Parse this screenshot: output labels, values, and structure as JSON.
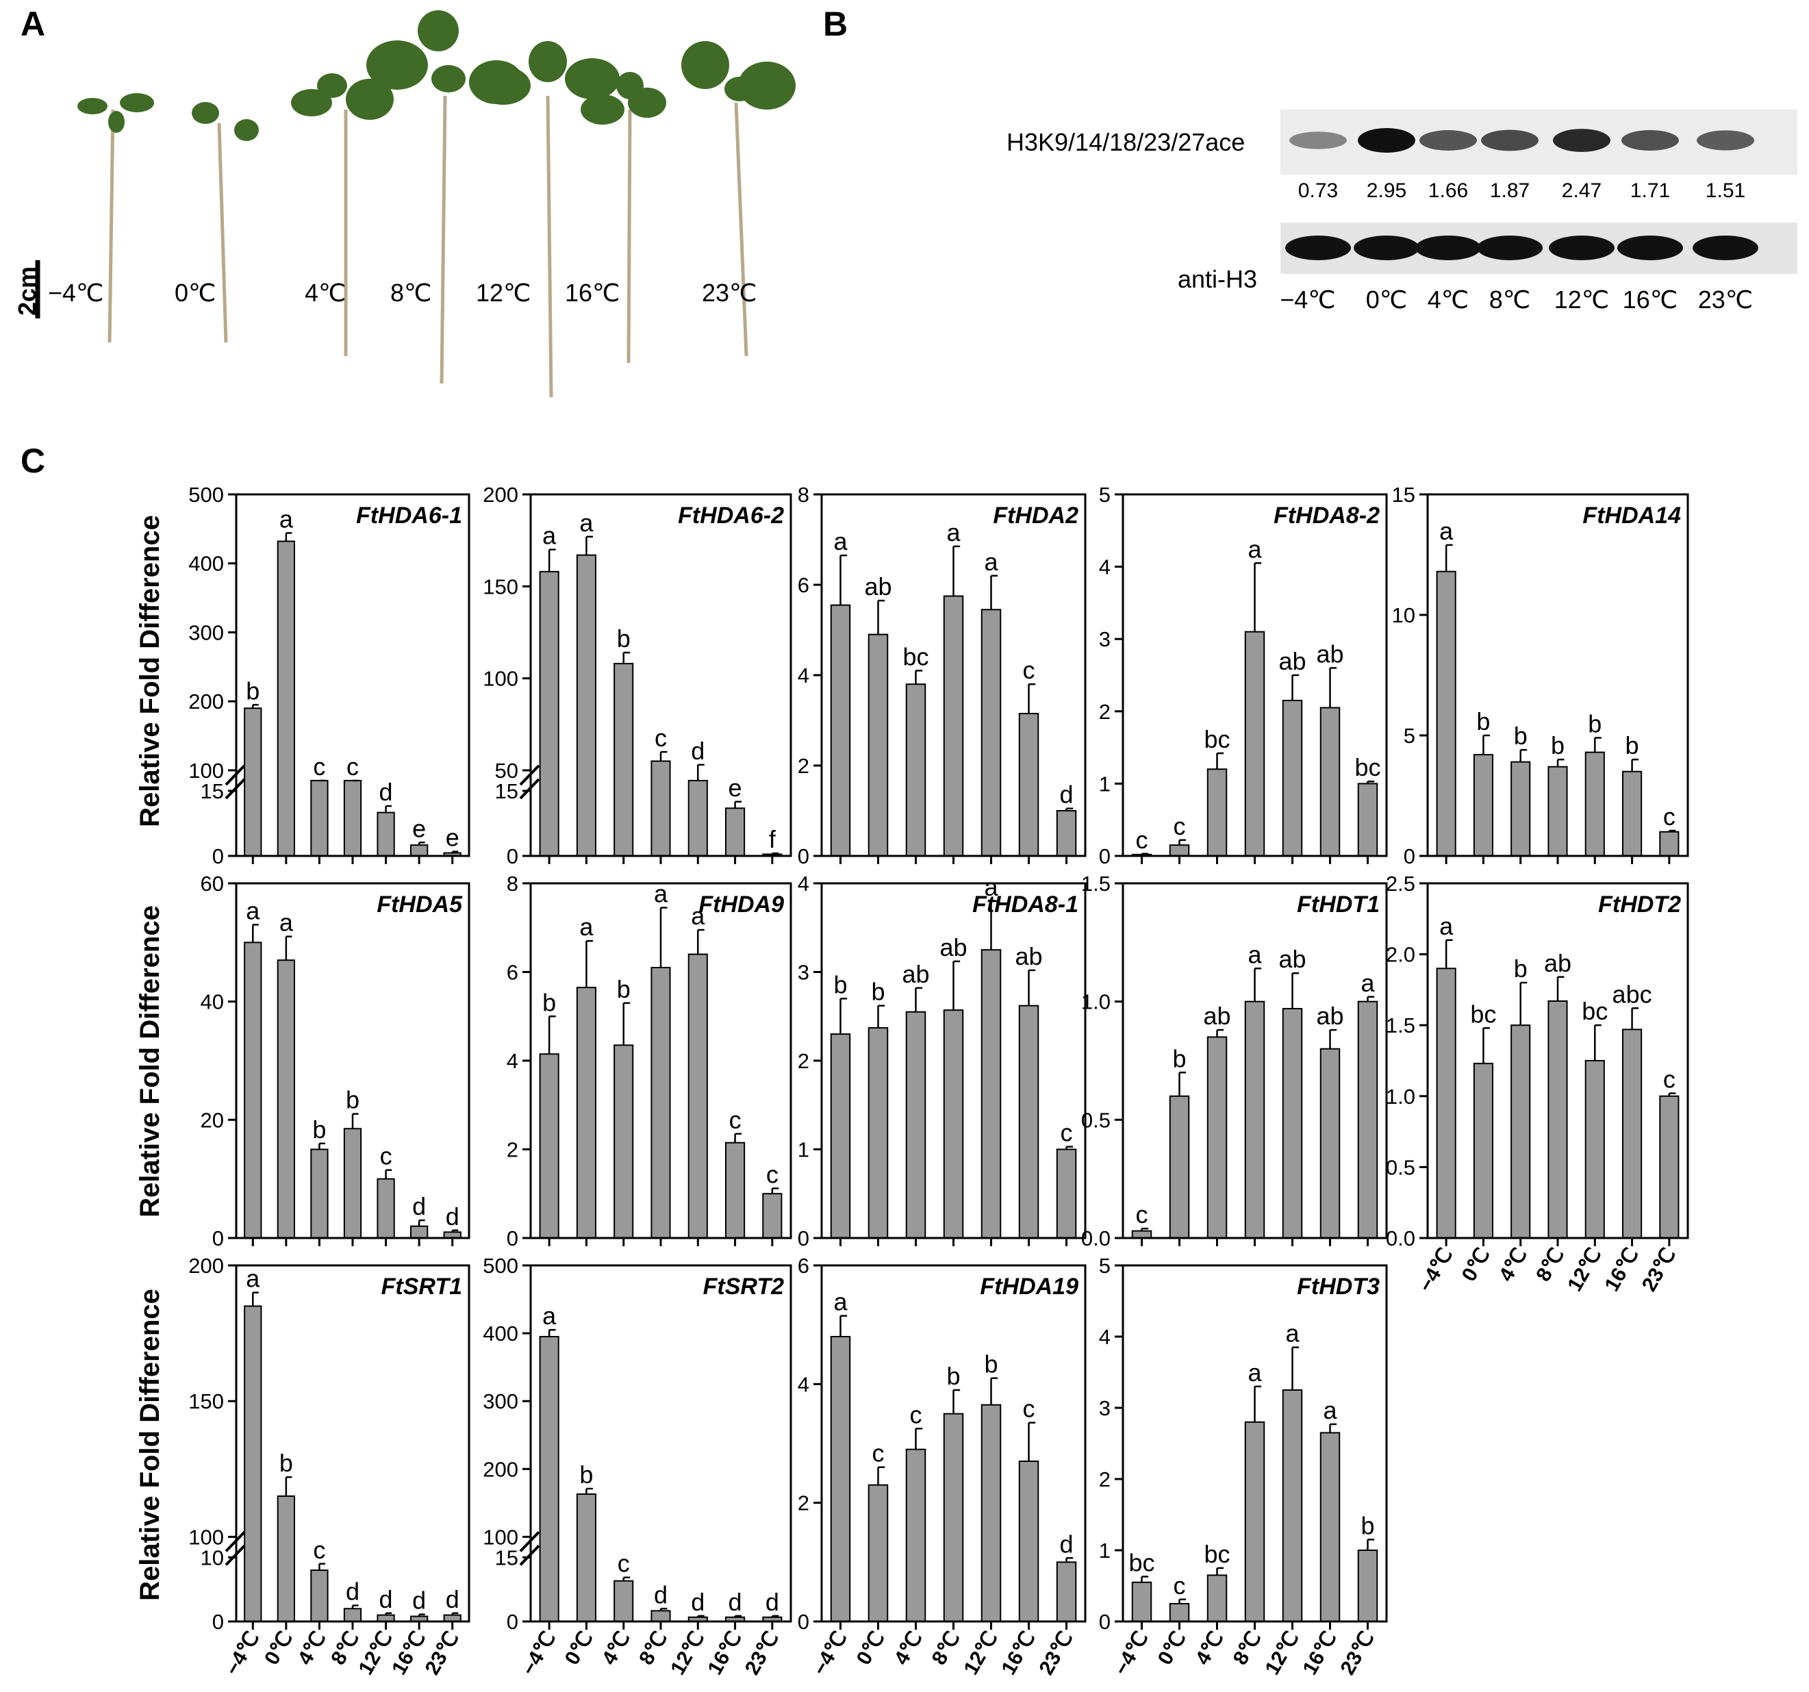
{
  "panels": {
    "A": {
      "letter": "A",
      "scale_bar_label": "2cm",
      "temperatures": [
        "−4℃",
        "0℃",
        "4℃",
        "8℃",
        "12℃",
        "16℃",
        "23℃"
      ]
    },
    "B": {
      "letter": "B",
      "row1_label": "H3K9/14/18/23/27ace",
      "row2_label": "anti-H3",
      "values": [
        "0.73",
        "2.95",
        "1.66",
        "1.87",
        "2.47",
        "1.71",
        "1.51"
      ],
      "temperatures": [
        "−4℃",
        "0℃",
        "4℃",
        "8℃",
        "12℃",
        "16℃",
        "23℃"
      ]
    },
    "C": {
      "letter": "C"
    }
  },
  "y_axis_label": "Relative Fold Difference",
  "categories": [
    "−4℃",
    "0℃",
    "4℃",
    "8℃",
    "12℃",
    "16℃",
    "23℃"
  ],
  "colors": {
    "bar": "#999999",
    "axis": "#000000"
  },
  "chart_data": [
    {
      "type": "bar",
      "title": "FtHDA6-1",
      "ylim": [
        0,
        500
      ],
      "broken": {
        "lower_max": 15,
        "upper_min": 100
      },
      "yticks": [
        0,
        15,
        100,
        200,
        300,
        400,
        500
      ],
      "values": [
        190,
        432,
        33,
        32,
        10,
        2.5,
        0.7
      ],
      "errors": [
        5,
        12,
        5,
        4,
        1.5,
        0.6,
        0.3
      ],
      "letters": [
        "b",
        "a",
        "c",
        "c",
        "d",
        "e",
        "e"
      ]
    },
    {
      "type": "bar",
      "title": "FtHDA6-2",
      "ylim": [
        0,
        200
      ],
      "broken": {
        "lower_max": 15,
        "upper_min": 50
      },
      "yticks": [
        0,
        15,
        50,
        100,
        150,
        200
      ],
      "values": [
        158,
        167,
        108,
        55,
        47,
        11,
        0.4
      ],
      "errors": [
        12,
        10,
        6,
        5,
        6,
        1.5,
        0.2
      ],
      "letters": [
        "a",
        "a",
        "b",
        "c",
        "d",
        "e",
        "f"
      ]
    },
    {
      "type": "bar",
      "title": "FtHDA2",
      "ylim": [
        0,
        8
      ],
      "yticks": [
        0,
        2,
        4,
        6,
        8
      ],
      "values": [
        5.55,
        4.9,
        3.8,
        5.75,
        5.45,
        3.15,
        1.0
      ],
      "errors": [
        1.1,
        0.75,
        0.3,
        1.1,
        0.75,
        0.65,
        0.05
      ],
      "letters": [
        "a",
        "ab",
        "bc",
        "a",
        "a",
        "c",
        "d"
      ]
    },
    {
      "type": "bar",
      "title": "FtHDA8-2",
      "ylim": [
        0,
        5
      ],
      "yticks": [
        0,
        1,
        2,
        3,
        4,
        5
      ],
      "values": [
        0.02,
        0.15,
        1.2,
        3.1,
        2.15,
        2.05,
        1.0
      ],
      "errors": [
        0.01,
        0.07,
        0.22,
        0.95,
        0.35,
        0.55,
        0.03
      ],
      "letters": [
        "c",
        "c",
        "bc",
        "a",
        "ab",
        "ab",
        "bc"
      ]
    },
    {
      "type": "bar",
      "title": "FtHDA14",
      "ylim": [
        0,
        15
      ],
      "yticks": [
        0,
        5,
        10,
        15
      ],
      "values": [
        11.8,
        4.2,
        3.9,
        3.7,
        4.3,
        3.5,
        1.0
      ],
      "errors": [
        1.1,
        0.8,
        0.5,
        0.3,
        0.6,
        0.5,
        0.05
      ],
      "letters": [
        "a",
        "b",
        "b",
        "b",
        "b",
        "b",
        "c"
      ]
    },
    {
      "type": "bar",
      "title": "FtHDA5",
      "ylim": [
        0,
        60
      ],
      "yticks": [
        0,
        20,
        40,
        60
      ],
      "values": [
        50,
        47,
        15,
        18.5,
        10,
        2,
        1
      ],
      "errors": [
        3,
        4,
        1,
        2.5,
        1.5,
        1,
        0.3
      ],
      "letters": [
        "a",
        "a",
        "b",
        "b",
        "c",
        "d",
        "d"
      ]
    },
    {
      "type": "bar",
      "title": "FtHDA9",
      "ylim": [
        0,
        8
      ],
      "yticks": [
        0,
        2,
        4,
        6,
        8
      ],
      "values": [
        4.15,
        5.65,
        4.35,
        6.1,
        6.4,
        2.15,
        1.0
      ],
      "errors": [
        0.85,
        1.05,
        0.95,
        1.35,
        0.55,
        0.2,
        0.12
      ],
      "letters": [
        "b",
        "a",
        "b",
        "a",
        "a",
        "c",
        "c"
      ]
    },
    {
      "type": "bar",
      "title": "FtHDA8-1",
      "ylim": [
        0,
        4
      ],
      "yticks": [
        0,
        1,
        2,
        3,
        4
      ],
      "values": [
        2.3,
        2.37,
        2.55,
        2.57,
        3.25,
        2.62,
        1.0
      ],
      "errors": [
        0.4,
        0.25,
        0.27,
        0.55,
        0.55,
        0.4,
        0.03
      ],
      "letters": [
        "b",
        "b",
        "ab",
        "ab",
        "a",
        "ab",
        "c"
      ]
    },
    {
      "type": "bar",
      "title": "FtHDT1",
      "ylim": [
        0,
        1.5
      ],
      "yticks": [
        0,
        0.5,
        1.0,
        1.5
      ],
      "ytick_labels": [
        "0.0",
        "0.5",
        "1.0",
        "1.5"
      ],
      "values": [
        0.03,
        0.6,
        0.85,
        1.0,
        0.97,
        0.8,
        1.0
      ],
      "errors": [
        0.01,
        0.1,
        0.03,
        0.14,
        0.15,
        0.08,
        0.02
      ],
      "letters": [
        "c",
        "b",
        "ab",
        "a",
        "ab",
        "ab",
        "a"
      ]
    },
    {
      "type": "bar",
      "title": "FtHDT2",
      "ylim": [
        0,
        2.5
      ],
      "yticks": [
        0,
        0.5,
        1.0,
        1.5,
        2.0,
        2.5
      ],
      "ytick_labels": [
        "0.0",
        "0.5",
        "1.0",
        "1.5",
        "2.0",
        "2.5"
      ],
      "values": [
        1.9,
        1.23,
        1.5,
        1.67,
        1.25,
        1.47,
        1.0
      ],
      "errors": [
        0.2,
        0.25,
        0.3,
        0.17,
        0.25,
        0.15,
        0.02
      ],
      "letters": [
        "a",
        "bc",
        "b",
        "ab",
        "bc",
        "abc",
        "c"
      ]
    },
    {
      "type": "bar",
      "title": "FtSRT1",
      "ylim": [
        0,
        200
      ],
      "broken": {
        "lower_max": 10,
        "upper_min": 100
      },
      "yticks": [
        0,
        10,
        100,
        150,
        200
      ],
      "values": [
        185,
        115,
        8,
        2,
        1,
        0.8,
        1
      ],
      "errors": [
        5,
        7,
        1,
        0.5,
        0.3,
        0.3,
        0.3
      ],
      "letters": [
        "a",
        "b",
        "c",
        "d",
        "d",
        "d",
        "d"
      ]
    },
    {
      "type": "bar",
      "title": "FtSRT2",
      "ylim": [
        0,
        500
      ],
      "broken": {
        "lower_max": 15,
        "upper_min": 100
      },
      "yticks": [
        0,
        15,
        100,
        200,
        300,
        400,
        500
      ],
      "values": [
        395,
        163,
        9.5,
        2.5,
        1,
        1,
        1
      ],
      "errors": [
        10,
        8,
        0.8,
        0.5,
        0.3,
        0.3,
        0.3
      ],
      "letters": [
        "a",
        "b",
        "c",
        "d",
        "d",
        "d",
        "d"
      ]
    },
    {
      "type": "bar",
      "title": "FtHDA19",
      "ylim": [
        0,
        6
      ],
      "yticks": [
        0,
        2,
        4,
        6
      ],
      "values": [
        4.8,
        2.3,
        2.9,
        3.5,
        3.65,
        2.7,
        1.0
      ],
      "errors": [
        0.35,
        0.3,
        0.35,
        0.4,
        0.45,
        0.65,
        0.07
      ],
      "letters": [
        "a",
        "c",
        "c",
        "b",
        "b",
        "c",
        "d"
      ]
    },
    {
      "type": "bar",
      "title": "FtHDT3",
      "ylim": [
        0,
        5
      ],
      "yticks": [
        0,
        1,
        2,
        3,
        4,
        5
      ],
      "values": [
        0.55,
        0.25,
        0.65,
        2.8,
        3.25,
        2.65,
        1.0
      ],
      "errors": [
        0.08,
        0.06,
        0.1,
        0.5,
        0.6,
        0.12,
        0.15
      ],
      "letters": [
        "bc",
        "c",
        "bc",
        "a",
        "a",
        "a",
        "b"
      ]
    }
  ]
}
